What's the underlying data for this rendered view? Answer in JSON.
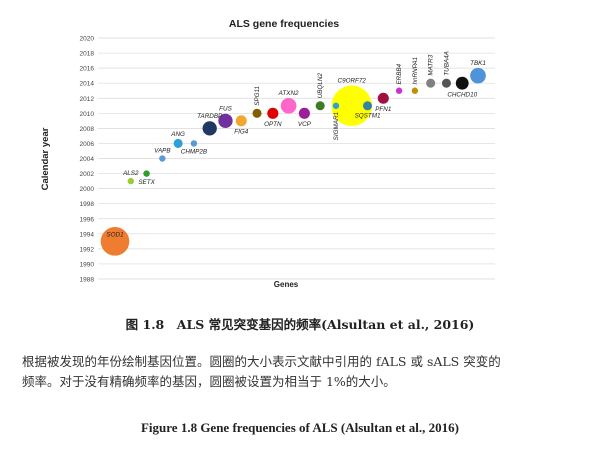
{
  "chart_data": {
    "type": "scatter",
    "subtype": "bubble",
    "title": "ALS gene frequencies",
    "xlabel": "Genes",
    "ylabel": "Calendar year",
    "ylim": [
      1988,
      2020
    ],
    "yticks": [
      1988,
      1990,
      1992,
      1994,
      1996,
      1998,
      2000,
      2002,
      2004,
      2006,
      2008,
      2010,
      2012,
      2014,
      2016,
      2018,
      2020
    ],
    "grid": true,
    "legend": "none",
    "points": [
      {
        "gene": "SOD1",
        "year": 1993,
        "size": 20,
        "color": "#ee7d31",
        "label_pos": "inside"
      },
      {
        "gene": "ALS2",
        "year": 2001,
        "size": 1,
        "color": "#9acd32",
        "label_pos": "above"
      },
      {
        "gene": "SETX",
        "year": 2002,
        "size": 1,
        "color": "#2ca02c",
        "label_pos": "below"
      },
      {
        "gene": "VAPB",
        "year": 2004,
        "size": 1,
        "color": "#5b9bd5",
        "label_pos": "above"
      },
      {
        "gene": "ANG",
        "year": 2006,
        "size": 2,
        "color": "#2e9fd8",
        "label_pos": "above"
      },
      {
        "gene": "CHMP2B",
        "year": 2006,
        "size": 1,
        "color": "#5b9bd5",
        "label_pos": "below"
      },
      {
        "gene": "TARDBP",
        "year": 2008,
        "size": 5,
        "color": "#1f3864",
        "label_pos": "above"
      },
      {
        "gene": "FUS",
        "year": 2009,
        "size": 5,
        "color": "#7030a0",
        "label_pos": "above"
      },
      {
        "gene": "FIG4",
        "year": 2009,
        "size": 3,
        "color": "#f0a830",
        "label_pos": "below"
      },
      {
        "gene": "SPG11",
        "year": 2010,
        "size": 2,
        "color": "#7f6000",
        "label_pos": "above"
      },
      {
        "gene": "OPTN",
        "year": 2010,
        "size": 3,
        "color": "#e00000",
        "label_pos": "below"
      },
      {
        "gene": "ATXN2",
        "year": 2011,
        "size": 6,
        "color": "#ff66cc",
        "label_pos": "above"
      },
      {
        "gene": "VCP",
        "year": 2010,
        "size": 3,
        "color": "#9b1f9b",
        "label_pos": "below"
      },
      {
        "gene": "UBQLN2",
        "year": 2011,
        "size": 2,
        "color": "#3a7d22",
        "label_pos": "above"
      },
      {
        "gene": "SIGMAR1",
        "year": 2011,
        "size": 1,
        "color": "#2e9fd8",
        "label_pos": "below"
      },
      {
        "gene": "C9ORF72",
        "year": 2011,
        "size": 40,
        "color": "#ffff00",
        "label_pos": "above"
      },
      {
        "gene": "SQSTM1",
        "year": 2011,
        "size": 2,
        "color": "#31859c",
        "label_pos": "below"
      },
      {
        "gene": "PFN1",
        "year": 2012,
        "size": 3,
        "color": "#a01040",
        "label_pos": "below"
      },
      {
        "gene": "ERBB4",
        "year": 2013,
        "size": 1,
        "color": "#cc33cc",
        "label_pos": "above"
      },
      {
        "gene": "hnRNPA1",
        "year": 2013,
        "size": 1,
        "color": "#c09000",
        "label_pos": "above"
      },
      {
        "gene": "MATR3",
        "year": 2014,
        "size": 2,
        "color": "#808080",
        "label_pos": "above"
      },
      {
        "gene": "TUBA4A",
        "year": 2014,
        "size": 2,
        "color": "#555555",
        "label_pos": "above"
      },
      {
        "gene": "CHCHD10",
        "year": 2014,
        "size": 4,
        "color": "#111111",
        "label_pos": "below"
      },
      {
        "gene": "TBK1",
        "year": 2015,
        "size": 6,
        "color": "#4f94d9",
        "label_pos": "above"
      }
    ]
  },
  "caption_cn": "图 1.8　ALS 常见突变基因的频率(Alsultan et al., 2016)",
  "paragraph": {
    "line1": "根据被发现的年份绘制基因位置。圆圈的大小表示文献中引用的 fALS 或 sALS 突变的",
    "line2": "频率。对于没有精确频率的基因，圆圈被设置为相当于 1%的大小。"
  },
  "caption_en": "Figure 1.8 Gene frequencies of ALS (Alsultan et al., 2016)"
}
